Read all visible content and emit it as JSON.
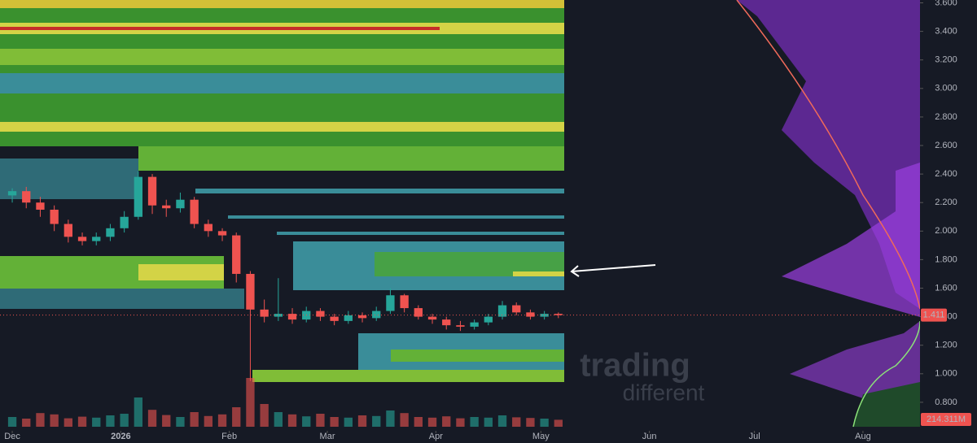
{
  "chart_data": {
    "type": "candlestick",
    "x": [
      0,
      4,
      8,
      12,
      16,
      20,
      24,
      28,
      32,
      36,
      40,
      44,
      48,
      52,
      56,
      60,
      64,
      68,
      72,
      76,
      80,
      84,
      88,
      92,
      96,
      100,
      104,
      108,
      112,
      116,
      120,
      124,
      128,
      132,
      136,
      140,
      144,
      148,
      152,
      156
    ],
    "open": [
      2.25,
      2.28,
      2.2,
      2.15,
      2.05,
      1.96,
      1.93,
      1.96,
      2.02,
      2.1,
      2.38,
      2.18,
      2.16,
      2.22,
      2.05,
      2.0,
      1.97,
      1.7,
      1.45,
      1.4,
      1.42,
      1.38,
      1.44,
      1.4,
      1.37,
      1.41,
      1.39,
      1.44,
      1.55,
      1.46,
      1.4,
      1.38,
      1.34,
      1.33,
      1.36,
      1.4,
      1.48,
      1.43,
      1.4,
      1.42
    ],
    "high": [
      2.3,
      2.31,
      2.24,
      2.18,
      2.08,
      1.99,
      1.99,
      2.05,
      2.14,
      2.42,
      2.4,
      2.22,
      2.27,
      2.24,
      2.08,
      2.02,
      1.99,
      1.72,
      1.52,
      1.67,
      1.46,
      1.47,
      1.46,
      1.42,
      1.44,
      1.43,
      1.47,
      1.6,
      1.56,
      1.48,
      1.42,
      1.4,
      1.37,
      1.38,
      1.42,
      1.51,
      1.5,
      1.45,
      1.44,
      1.43
    ],
    "low": [
      2.2,
      2.16,
      2.1,
      2.0,
      1.92,
      1.9,
      1.9,
      1.93,
      1.99,
      2.08,
      2.12,
      2.1,
      2.13,
      2.02,
      1.96,
      1.93,
      1.64,
      0.95,
      1.36,
      1.37,
      1.35,
      1.36,
      1.37,
      1.34,
      1.35,
      1.36,
      1.37,
      1.42,
      1.43,
      1.38,
      1.35,
      1.31,
      1.3,
      1.31,
      1.34,
      1.38,
      1.41,
      1.38,
      1.38,
      1.39
    ],
    "close": [
      2.28,
      2.2,
      2.15,
      2.05,
      1.96,
      1.93,
      1.96,
      2.02,
      2.1,
      2.38,
      2.18,
      2.16,
      2.22,
      2.05,
      2.0,
      1.97,
      1.7,
      1.45,
      1.4,
      1.42,
      1.38,
      1.44,
      1.4,
      1.37,
      1.41,
      1.39,
      1.44,
      1.55,
      1.46,
      1.4,
      1.38,
      1.34,
      1.33,
      1.36,
      1.4,
      1.48,
      1.43,
      1.4,
      1.42,
      1.411
    ],
    "volume": [
      300,
      250,
      420,
      380,
      260,
      310,
      280,
      350,
      400,
      900,
      520,
      360,
      300,
      450,
      330,
      380,
      600,
      1500,
      700,
      450,
      380,
      320,
      400,
      300,
      280,
      350,
      330,
      500,
      420,
      300,
      280,
      320,
      260,
      300,
      280,
      350,
      290,
      270,
      250,
      214.311
    ],
    "volume_value_label": "214.311M",
    "up_color": "#26a69a",
    "down_color": "#ef5350",
    "xlim": [
      -3.5,
      259.3
    ],
    "xticks": [
      {
        "value": 0,
        "label": "Dec"
      },
      {
        "value": 31,
        "label": "2026"
      },
      {
        "value": 62,
        "label": "Feb"
      },
      {
        "value": 90,
        "label": "Mar"
      },
      {
        "value": 121,
        "label": "Apr"
      },
      {
        "value": 151,
        "label": "May"
      },
      {
        "value": 182,
        "label": "Jun"
      },
      {
        "value": 212,
        "label": "Jul"
      },
      {
        "value": 243,
        "label": "Aug"
      }
    ],
    "ylim": [
      0.6,
      3.62
    ],
    "yticks": [
      {
        "value": 0.8,
        "label": "0.800"
      },
      {
        "value": 1.0,
        "label": "1.000"
      },
      {
        "value": 1.2,
        "label": "1.200"
      },
      {
        "value": 1.4,
        "label": "1.400"
      },
      {
        "value": 1.6,
        "label": "1.600"
      },
      {
        "value": 1.8,
        "label": "1.800"
      },
      {
        "value": 2.0,
        "label": "2.000"
      },
      {
        "value": 2.2,
        "label": "2.200"
      },
      {
        "value": 2.4,
        "label": "2.400"
      },
      {
        "value": 2.6,
        "label": "2.600"
      },
      {
        "value": 2.8,
        "label": "2.800"
      },
      {
        "value": 3.0,
        "label": "3.000"
      },
      {
        "value": 3.2,
        "label": "3.200"
      },
      {
        "value": 3.4,
        "label": "3.400"
      },
      {
        "value": 3.6,
        "label": "3.600"
      }
    ],
    "watermark": [
      "trading",
      "different"
    ]
  }
}
